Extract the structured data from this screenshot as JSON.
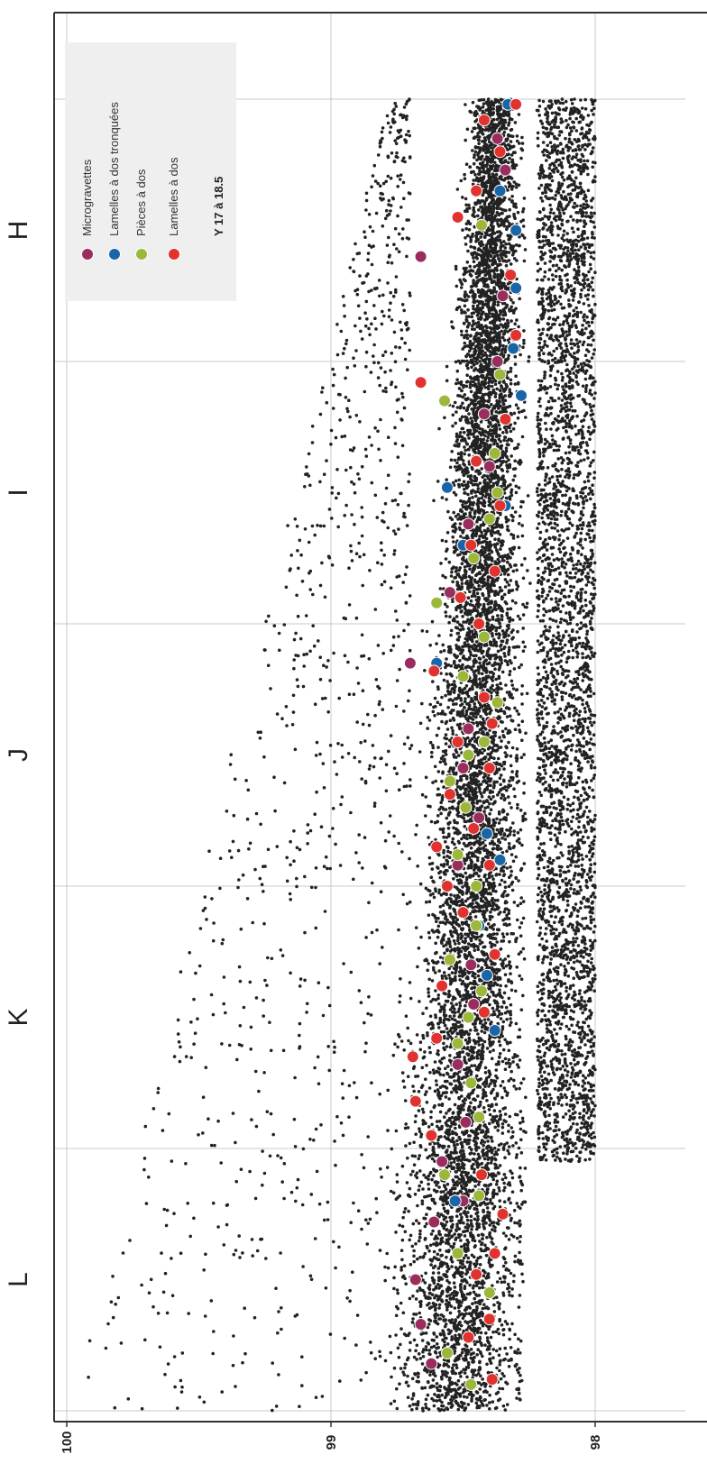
{
  "chart_data": {
    "type": "scatter",
    "orientation": "rotated-90",
    "value_axis": {
      "ticks": [
        100,
        99,
        98
      ],
      "range": [
        100.05,
        97.6
      ]
    },
    "categories": [
      "L",
      "K",
      "J",
      "I",
      "H"
    ],
    "grid": true,
    "legend": {
      "placement": "top-right",
      "title": "Y 17 à 18.5",
      "entries": [
        {
          "name": "Microgravettes",
          "color": "#9b2d5e"
        },
        {
          "name": "Lamelles à dos tronquées",
          "color": "#1a64a8"
        },
        {
          "name": "Pièces à dos",
          "color": "#9bb83a"
        },
        {
          "name": "Lamelles à dos",
          "color": "#e0332f"
        }
      ]
    },
    "background_color": "#222222",
    "series": [
      {
        "name": "Microgravettes",
        "points": [
          [
            0.18,
            98.62
          ],
          [
            0.33,
            98.66
          ],
          [
            0.5,
            98.68
          ],
          [
            0.72,
            98.61
          ],
          [
            0.95,
            98.58
          ],
          [
            1.1,
            98.49
          ],
          [
            1.32,
            98.52
          ],
          [
            1.55,
            98.46
          ],
          [
            1.7,
            98.47
          ],
          [
            1.9,
            98.5
          ],
          [
            2.08,
            98.52
          ],
          [
            2.26,
            98.44
          ],
          [
            2.45,
            98.5
          ],
          [
            2.6,
            98.48
          ],
          [
            2.85,
            98.7
          ],
          [
            3.12,
            98.55
          ],
          [
            3.38,
            98.48
          ],
          [
            3.6,
            98.4
          ],
          [
            3.8,
            98.42
          ],
          [
            4.0,
            98.37
          ],
          [
            4.25,
            98.35
          ],
          [
            4.4,
            98.66
          ],
          [
            4.73,
            98.34
          ],
          [
            4.85,
            98.37
          ],
          [
            0.8,
            98.5
          ]
        ]
      },
      {
        "name": "Lamelles à dos tronquées",
        "points": [
          [
            0.8,
            98.53
          ],
          [
            1.45,
            98.38
          ],
          [
            1.66,
            98.41
          ],
          [
            1.85,
            98.44
          ],
          [
            2.1,
            98.36
          ],
          [
            2.2,
            98.41
          ],
          [
            2.85,
            98.6
          ],
          [
            3.0,
            98.44
          ],
          [
            3.3,
            98.5
          ],
          [
            3.45,
            98.34
          ],
          [
            3.52,
            98.56
          ],
          [
            3.87,
            98.28
          ],
          [
            4.05,
            98.31
          ],
          [
            4.28,
            98.3
          ],
          [
            4.5,
            98.3
          ],
          [
            4.65,
            98.36
          ],
          [
            4.98,
            98.33
          ]
        ]
      },
      {
        "name": "Pièces à dos",
        "points": [
          [
            0.1,
            98.47
          ],
          [
            0.22,
            98.56
          ],
          [
            0.45,
            98.4
          ],
          [
            0.6,
            98.52
          ],
          [
            0.82,
            98.44
          ],
          [
            0.9,
            98.57
          ],
          [
            1.12,
            98.44
          ],
          [
            1.25,
            98.47
          ],
          [
            1.4,
            98.52
          ],
          [
            1.5,
            98.48
          ],
          [
            1.6,
            98.43
          ],
          [
            1.72,
            98.55
          ],
          [
            1.85,
            98.45
          ],
          [
            2.0,
            98.45
          ],
          [
            2.12,
            98.52
          ],
          [
            2.3,
            98.49
          ],
          [
            2.4,
            98.55
          ],
          [
            2.5,
            98.48
          ],
          [
            2.55,
            98.42
          ],
          [
            2.7,
            98.37
          ],
          [
            2.8,
            98.5
          ],
          [
            2.95,
            98.42
          ],
          [
            3.08,
            98.6
          ],
          [
            3.25,
            98.46
          ],
          [
            3.4,
            98.4
          ],
          [
            3.5,
            98.37
          ],
          [
            3.65,
            98.38
          ],
          [
            3.85,
            98.57
          ],
          [
            3.95,
            98.36
          ],
          [
            4.52,
            98.43
          ]
        ]
      },
      {
        "name": "Lamelles à dos",
        "points": [
          [
            0.12,
            98.39
          ],
          [
            0.28,
            98.48
          ],
          [
            0.35,
            98.4
          ],
          [
            0.52,
            98.45
          ],
          [
            0.6,
            98.38
          ],
          [
            0.75,
            98.35
          ],
          [
            0.9,
            98.43
          ],
          [
            1.05,
            98.62
          ],
          [
            1.18,
            98.68
          ],
          [
            1.35,
            98.69
          ],
          [
            1.42,
            98.6
          ],
          [
            1.52,
            98.42
          ],
          [
            1.62,
            98.58
          ],
          [
            1.74,
            98.38
          ],
          [
            1.9,
            98.5
          ],
          [
            2.0,
            98.56
          ],
          [
            2.08,
            98.4
          ],
          [
            2.15,
            98.6
          ],
          [
            2.22,
            98.46
          ],
          [
            2.35,
            98.55
          ],
          [
            2.45,
            98.4
          ],
          [
            2.55,
            98.52
          ],
          [
            2.62,
            98.39
          ],
          [
            2.72,
            98.42
          ],
          [
            2.82,
            98.61
          ],
          [
            3.0,
            98.44
          ],
          [
            3.1,
            98.51
          ],
          [
            3.2,
            98.38
          ],
          [
            3.3,
            98.47
          ],
          [
            3.45,
            98.36
          ],
          [
            3.62,
            98.45
          ],
          [
            3.78,
            98.34
          ],
          [
            3.92,
            98.66
          ],
          [
            4.1,
            98.3
          ],
          [
            4.33,
            98.32
          ],
          [
            4.55,
            98.52
          ],
          [
            4.65,
            98.45
          ],
          [
            4.8,
            98.36
          ],
          [
            4.98,
            98.3
          ],
          [
            4.92,
            98.42
          ]
        ]
      }
    ]
  }
}
